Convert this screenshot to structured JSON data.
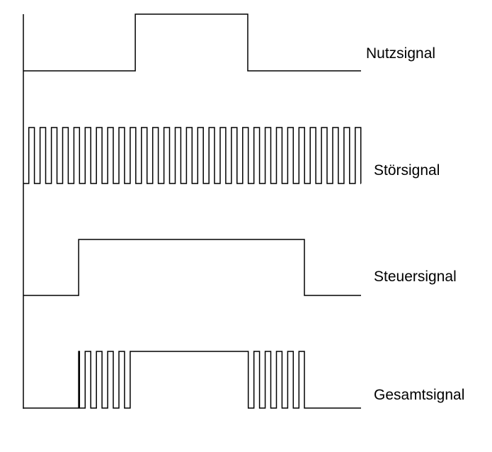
{
  "labels": {
    "useful_signal": "Nutzsignal",
    "noise_signal": "Störsignal",
    "control_signal": "Steuersignal",
    "total_signal": "Gesamtsignal"
  },
  "colors": {
    "line": "#000000",
    "background": "#ffffff"
  }
}
